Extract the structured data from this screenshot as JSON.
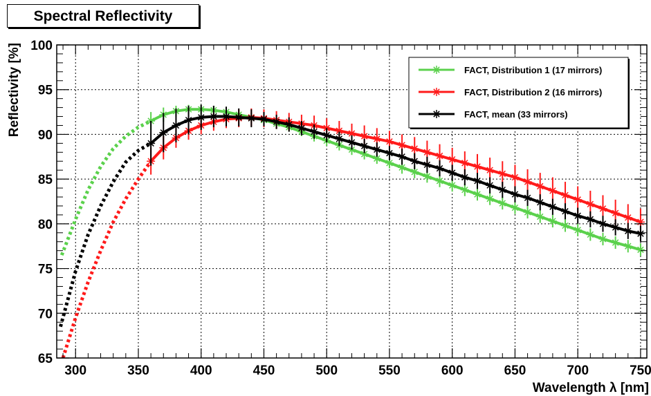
{
  "chart_data": {
    "type": "line",
    "title": "Spectral Reflectivity",
    "xlabel": "Wavelength λ [nm]",
    "ylabel": "Reflectivity [%]",
    "xlim": [
      285,
      755
    ],
    "ylim": [
      65,
      100
    ],
    "x_ticks": [
      300,
      350,
      400,
      450,
      500,
      550,
      600,
      650,
      700,
      750
    ],
    "y_ticks": [
      65,
      70,
      75,
      80,
      85,
      90,
      95,
      100
    ],
    "grid": true,
    "legend_position": "top-right",
    "measured_x": [
      360,
      370,
      380,
      390,
      400,
      410,
      420,
      430,
      440,
      450,
      460,
      470,
      480,
      490,
      500,
      510,
      520,
      530,
      540,
      550,
      560,
      570,
      580,
      590,
      600,
      610,
      620,
      630,
      640,
      650,
      660,
      670,
      680,
      690,
      700,
      710,
      720,
      730,
      740,
      750
    ],
    "series": [
      {
        "name": "FACT, Distribution 1 (17 mirrors)",
        "color": "#5bd14c",
        "extrapolated_x": [
          289,
          300,
          310,
          320,
          330,
          340,
          350,
          360
        ],
        "extrapolated_y": [
          76.5,
          80.5,
          83.8,
          86.4,
          88.4,
          89.8,
          90.8,
          91.5
        ],
        "values": [
          91.5,
          92.2,
          92.6,
          92.8,
          92.8,
          92.7,
          92.5,
          92.2,
          91.9,
          91.6,
          91.2,
          90.8,
          90.3,
          89.8,
          89.3,
          88.8,
          88.3,
          87.8,
          87.3,
          86.8,
          86.3,
          85.8,
          85.3,
          84.8,
          84.3,
          83.8,
          83.3,
          82.8,
          82.3,
          81.8,
          81.3,
          80.8,
          80.3,
          79.8,
          79.3,
          78.8,
          78.3,
          77.9,
          77.5,
          77.1
        ],
        "errors": [
          1.0,
          0.8,
          0.6,
          0.5,
          0.5,
          0.5,
          0.5,
          0.5,
          0.5,
          0.5,
          0.5,
          0.5,
          0.5,
          0.6,
          0.6,
          0.6,
          0.6,
          0.6,
          0.6,
          0.6,
          0.7,
          0.7,
          0.7,
          0.7,
          0.7,
          0.7,
          0.7,
          0.7,
          0.7,
          0.7,
          0.7,
          0.7,
          0.7,
          0.7,
          0.7,
          0.7,
          0.7,
          0.7,
          0.7,
          0.7
        ]
      },
      {
        "name": "FACT, Distribution 2 (16 mirrors)",
        "color": "#ff1a1a",
        "extrapolated_x": [
          290,
          300,
          310,
          320,
          330,
          340,
          350,
          360
        ],
        "extrapolated_y": [
          65.0,
          69.5,
          73.5,
          77.0,
          80.2,
          82.8,
          85.0,
          87.0
        ],
        "values": [
          87.0,
          88.5,
          89.6,
          90.4,
          91.0,
          91.4,
          91.7,
          91.8,
          91.9,
          91.8,
          91.6,
          91.4,
          91.2,
          91.0,
          90.7,
          90.4,
          90.1,
          89.8,
          89.5,
          89.2,
          88.8,
          88.4,
          88.0,
          87.6,
          87.2,
          86.8,
          86.4,
          86.0,
          85.6,
          85.2,
          84.7,
          84.2,
          83.7,
          83.2,
          82.7,
          82.2,
          81.7,
          81.2,
          80.7,
          80.2
        ],
        "errors": [
          1.5,
          1.3,
          1.1,
          1.0,
          1.0,
          1.0,
          1.0,
          1.0,
          1.0,
          1.0,
          1.0,
          1.0,
          1.0,
          1.1,
          1.1,
          1.1,
          1.1,
          1.2,
          1.2,
          1.2,
          1.2,
          1.3,
          1.3,
          1.3,
          1.3,
          1.3,
          1.4,
          1.4,
          1.4,
          1.4,
          1.4,
          1.5,
          1.5,
          1.5,
          1.5,
          1.5,
          1.5,
          1.5,
          1.5,
          1.5
        ]
      },
      {
        "name": "FACT, mean (33 mirrors)",
        "color": "#000000",
        "extrapolated_x": [
          288,
          300,
          310,
          320,
          330,
          340,
          350,
          360
        ],
        "extrapolated_y": [
          68.5,
          74.7,
          78.8,
          82.0,
          84.7,
          86.9,
          88.2,
          89.0
        ],
        "values": [
          89.0,
          90.2,
          91.0,
          91.6,
          91.9,
          92.0,
          92.0,
          91.9,
          91.8,
          91.7,
          91.4,
          91.1,
          90.7,
          90.3,
          89.9,
          89.5,
          89.1,
          88.7,
          88.3,
          87.9,
          87.5,
          87.0,
          86.6,
          86.2,
          85.7,
          85.2,
          84.8,
          84.3,
          83.8,
          83.3,
          82.9,
          82.4,
          81.9,
          81.4,
          80.9,
          80.5,
          80.0,
          79.6,
          79.2,
          78.9
        ],
        "errors": [
          2.5,
          2.2,
          1.9,
          1.6,
          1.4,
          1.2,
          1.1,
          1.0,
          1.0,
          0.8,
          0.8,
          0.8,
          0.8,
          0.8,
          0.8,
          0.8,
          0.8,
          0.8,
          0.8,
          0.8,
          0.9,
          0.9,
          0.9,
          0.9,
          0.9,
          0.9,
          0.9,
          0.9,
          0.9,
          0.9,
          0.9,
          0.9,
          0.9,
          0.9,
          0.9,
          0.9,
          0.9,
          0.9,
          0.9,
          0.9
        ]
      }
    ]
  }
}
